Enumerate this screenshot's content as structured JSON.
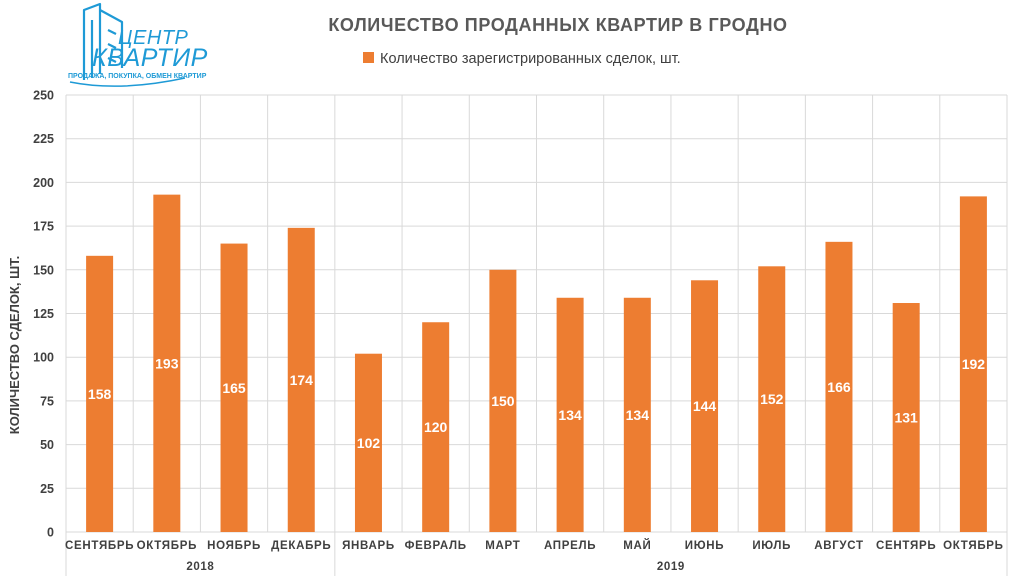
{
  "logo": {
    "line1": "ЦЕНТР",
    "line2": "КВАРТИР",
    "tagline": "ПРОДАЖА, ПОКУПКА, ОБМЕН КВАРТИР"
  },
  "colors": {
    "bar": "#ED7D31",
    "grid": "#D9D9D9",
    "logo": "#1E9AD6"
  },
  "chart_data": {
    "type": "bar",
    "title": "КОЛИЧЕСТВО ПРОДАННЫХ КВАРТИР В ГРОДНО",
    "ylabel": "КОЛИЧЕСТВО СДЕЛОК, ШТ.",
    "xlabel": "",
    "ylim": [
      0,
      250
    ],
    "yticks": [
      0,
      25,
      50,
      75,
      100,
      125,
      150,
      175,
      200,
      225,
      250
    ],
    "grid": true,
    "legend_position": "top",
    "categories": [
      "СЕНТЯБРЬ",
      "ОКТЯБРЬ",
      "НОЯБРЬ",
      "ДЕКАБРЬ",
      "ЯНВАРЬ",
      "ФЕВРАЛЬ",
      "МАРТ",
      "АПРЕЛЬ",
      "МАЙ",
      "ИЮНЬ",
      "ИЮЛЬ",
      "АВГУСТ",
      "СЕНТЯРЬ",
      "ОКТЯБРЬ"
    ],
    "year_groups": [
      {
        "label": "2018",
        "from": 0,
        "to": 3
      },
      {
        "label": "2019",
        "from": 4,
        "to": 13
      }
    ],
    "series": [
      {
        "name": "Количество зарегистрированных сделок, шт.",
        "values": [
          158,
          193,
          165,
          174,
          102,
          120,
          150,
          134,
          134,
          144,
          152,
          166,
          131,
          192
        ],
        "label_values": [
          158,
          193,
          165,
          174,
          102,
          120,
          150,
          134,
          134,
          144,
          152,
          166,
          131,
          192
        ]
      }
    ]
  }
}
